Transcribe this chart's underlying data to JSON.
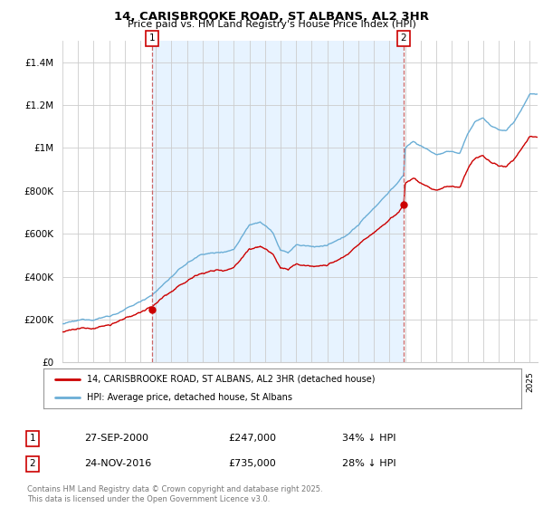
{
  "title": "14, CARISBROOKE ROAD, ST ALBANS, AL2 3HR",
  "subtitle": "Price paid vs. HM Land Registry's House Price Index (HPI)",
  "hpi_color": "#6baed6",
  "price_color": "#cc0000",
  "marker_color": "#cc0000",
  "vline_color": "#cc6666",
  "shade_color": "#ddeeff",
  "background_color": "#ffffff",
  "grid_color": "#cccccc",
  "ylim": [
    0,
    1500000
  ],
  "yticks": [
    0,
    200000,
    400000,
    600000,
    800000,
    1000000,
    1200000,
    1400000
  ],
  "ytick_labels": [
    "£0",
    "£200K",
    "£400K",
    "£600K",
    "£800K",
    "£1M",
    "£1.2M",
    "£1.4M"
  ],
  "legend_label_red": "14, CARISBROOKE ROAD, ST ALBANS, AL2 3HR (detached house)",
  "legend_label_blue": "HPI: Average price, detached house, St Albans",
  "annotation1_label": "1",
  "annotation1_date": "27-SEP-2000",
  "annotation1_price": "£247,000",
  "annotation1_hpi": "34% ↓ HPI",
  "annotation2_label": "2",
  "annotation2_date": "24-NOV-2016",
  "annotation2_price": "£735,000",
  "annotation2_hpi": "28% ↓ HPI",
  "footer": "Contains HM Land Registry data © Crown copyright and database right 2025.\nThis data is licensed under the Open Government Licence v3.0.",
  "sale1_year": 2000.75,
  "sale1_price": 247000,
  "sale2_year": 2016.9,
  "sale2_price": 735000,
  "xmin": 1995,
  "xmax": 2025.5
}
